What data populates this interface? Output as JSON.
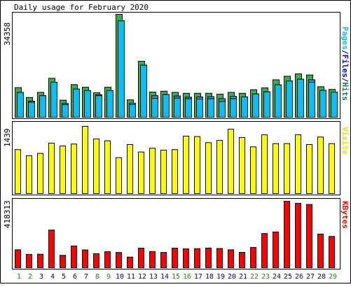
{
  "title": "Daily usage for February 2020",
  "colors": {
    "background": "#ffffff",
    "frame": "#000000",
    "panel_bg": "#ffffff",
    "hits": "#00805c",
    "hits_fill": "#33b24c",
    "files": "#0000ff",
    "files_fill": "#3a8fe0",
    "pages": "#00c0ff",
    "pages_fill": "#00bfff",
    "visits": "#ffff00",
    "kbytes": "#ff0000",
    "weekend_label": "#00a000",
    "weekday_label": "#000080"
  },
  "labels": {
    "right_top": [
      "Pages",
      "Files",
      "Hits"
    ],
    "right_mid": "Visits",
    "right_bot": "KBytes",
    "y_top": "34358",
    "y_mid": "1439",
    "y_bot": "418313"
  },
  "chart_data": [
    {
      "type": "bar",
      "title": "Daily usage for February 2020",
      "categories": [
        "1",
        "2",
        "3",
        "4",
        "5",
        "6",
        "7",
        "8",
        "9",
        "10",
        "11",
        "12",
        "13",
        "14",
        "15",
        "16",
        "17",
        "18",
        "19",
        "20",
        "21",
        "22",
        "23",
        "24",
        "25",
        "26",
        "27",
        "28",
        "29"
      ],
      "weekend_days": [
        "1",
        "2",
        "8",
        "9",
        "15",
        "16",
        "22",
        "23",
        "29"
      ],
      "ymax": 34358,
      "series": [
        {
          "name": "Hits",
          "values": [
            9900,
            6600,
            8300,
            13000,
            5700,
            10900,
            10000,
            8200,
            10000,
            34358,
            5800,
            18700,
            8400,
            8700,
            8300,
            8000,
            8000,
            8000,
            7700,
            8300,
            8000,
            9200,
            9800,
            12500,
            13700,
            14500,
            14100,
            10200,
            9300
          ]
        },
        {
          "name": "Files",
          "values": [
            8300,
            5400,
            7200,
            11700,
            4600,
            9400,
            8900,
            7500,
            8900,
            32200,
            4700,
            17400,
            7200,
            7600,
            7100,
            6700,
            6800,
            6900,
            6200,
            7000,
            6800,
            7800,
            8500,
            10800,
            12100,
            12700,
            12500,
            9000,
            8400
          ]
        },
        {
          "name": "Pages",
          "values": [
            8300,
            5000,
            7200,
            11700,
            4200,
            9400,
            8900,
            7200,
            8900,
            32200,
            4200,
            17400,
            6300,
            7600,
            6400,
            6200,
            6100,
            6200,
            5300,
            6200,
            6800,
            7800,
            8500,
            10800,
            12100,
            12700,
            11700,
            9000,
            8400
          ]
        }
      ]
    },
    {
      "type": "bar",
      "categories": [
        "1",
        "2",
        "3",
        "4",
        "5",
        "6",
        "7",
        "8",
        "9",
        "10",
        "11",
        "12",
        "13",
        "14",
        "15",
        "16",
        "17",
        "18",
        "19",
        "20",
        "21",
        "22",
        "23",
        "24",
        "25",
        "26",
        "27",
        "28",
        "29"
      ],
      "ymax": 1439,
      "series": [
        {
          "name": "Visits",
          "values": [
            940,
            810,
            860,
            1080,
            1020,
            1060,
            1439,
            1170,
            1130,
            770,
            1050,
            890,
            970,
            930,
            940,
            1230,
            1220,
            1090,
            1140,
            1380,
            1200,
            1000,
            1260,
            1070,
            1070,
            1260,
            1050,
            1210,
            1070
          ]
        }
      ]
    },
    {
      "type": "bar",
      "categories": [
        "1",
        "2",
        "3",
        "4",
        "5",
        "6",
        "7",
        "8",
        "9",
        "10",
        "11",
        "12",
        "13",
        "14",
        "15",
        "16",
        "17",
        "18",
        "19",
        "20",
        "21",
        "22",
        "23",
        "24",
        "25",
        "26",
        "27",
        "28",
        "29"
      ],
      "ymax": 418313,
      "series": [
        {
          "name": "KBytes",
          "values": [
            113000,
            84000,
            85000,
            237000,
            78000,
            137000,
            112000,
            88000,
            101000,
            96000,
            67000,
            123000,
            102000,
            96000,
            123000,
            119000,
            120000,
            124000,
            121000,
            113000,
            97000,
            128000,
            215000,
            225000,
            418313,
            405000,
            398000,
            212000,
            197000
          ]
        }
      ]
    }
  ]
}
